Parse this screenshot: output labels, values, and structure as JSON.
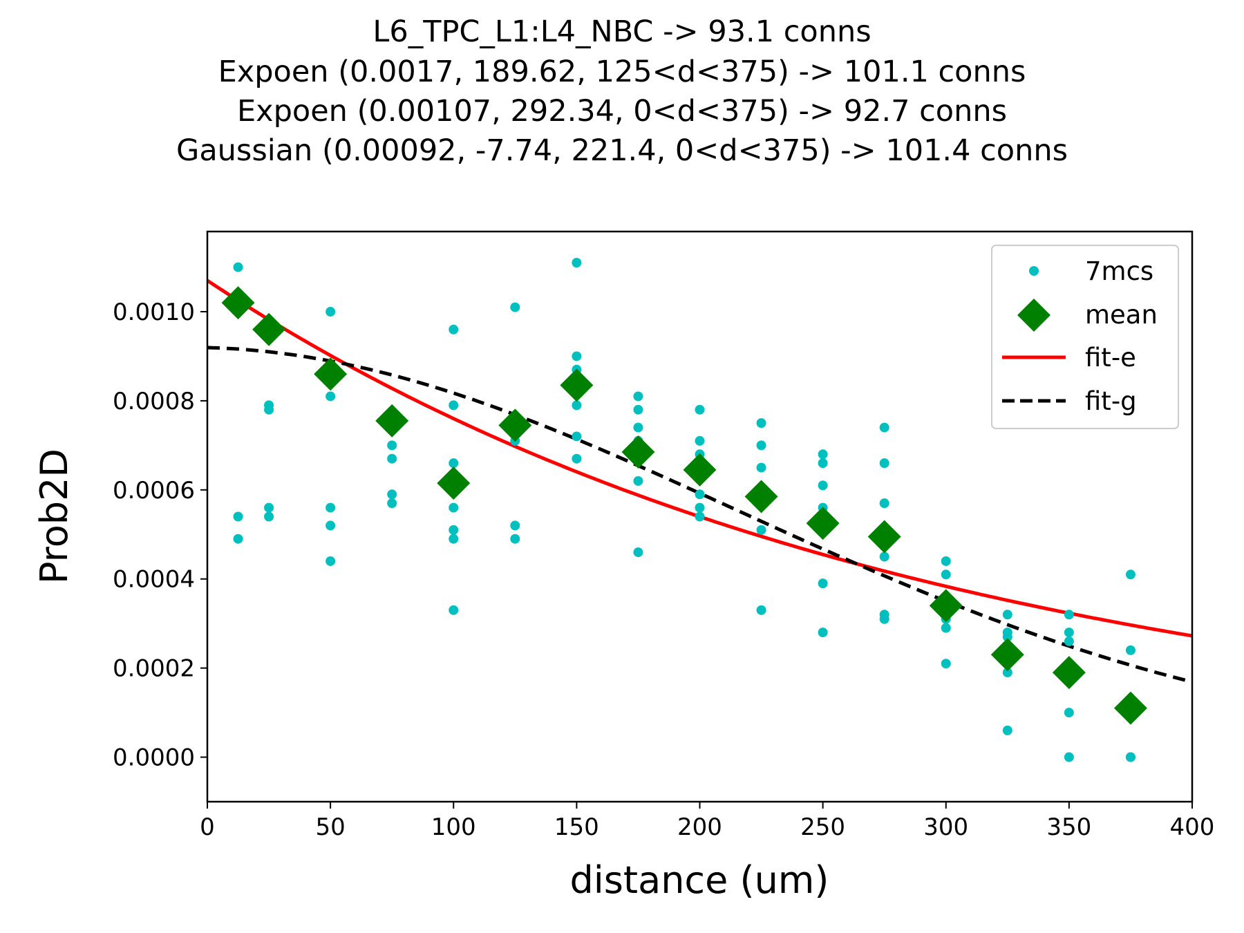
{
  "chart_data": {
    "type": "scatter",
    "title_lines": [
      "L6_TPC_L1:L4_NBC -> 93.1 conns",
      "Expoen (0.0017, 189.62, 125<d<375) -> 101.1 conns",
      "Expoen (0.00107, 292.34, 0<d<375) -> 92.7 conns",
      "Gaussian (0.00092, -7.74, 221.4, 0<d<375) -> 101.4 conns"
    ],
    "xlabel": "distance (um)",
    "ylabel": "Prob2D",
    "xlim": [
      0,
      400
    ],
    "ylim": [
      -0.0001,
      0.00118
    ],
    "x_ticks": [
      0,
      50,
      100,
      150,
      200,
      250,
      300,
      350,
      400
    ],
    "x_tick_labels": [
      "0",
      "50",
      "100",
      "150",
      "200",
      "250",
      "300",
      "350",
      "400"
    ],
    "y_ticks": [
      0,
      0.0002,
      0.0004,
      0.0006,
      0.0008,
      0.001
    ],
    "y_tick_labels": [
      "0.0000",
      "0.0002",
      "0.0004",
      "0.0006",
      "0.0008",
      "0.0010"
    ],
    "grid": false,
    "legend_position": "top-right",
    "legend": [
      "7mcs",
      "mean",
      "fit-e",
      "fit-g"
    ],
    "series": [
      {
        "name": "7mcs",
        "kind": "points",
        "color": "#00bfbf",
        "points": [
          [
            12.5,
            0.0011
          ],
          [
            12.5,
            0.00054
          ],
          [
            12.5,
            0.00049
          ],
          [
            25,
            0.00079
          ],
          [
            25,
            0.00078
          ],
          [
            25,
            0.00056
          ],
          [
            25,
            0.00054
          ],
          [
            50,
            0.001
          ],
          [
            50,
            0.00081
          ],
          [
            50,
            0.00056
          ],
          [
            50,
            0.00052
          ],
          [
            50,
            0.00044
          ],
          [
            75,
            0.0007
          ],
          [
            75,
            0.00067
          ],
          [
            75,
            0.00059
          ],
          [
            75,
            0.00057
          ],
          [
            100,
            0.00096
          ],
          [
            100,
            0.00079
          ],
          [
            100,
            0.00066
          ],
          [
            100,
            0.00056
          ],
          [
            100,
            0.00051
          ],
          [
            100,
            0.00049
          ],
          [
            100,
            0.00033
          ],
          [
            125,
            0.00101
          ],
          [
            125,
            0.00071
          ],
          [
            125,
            0.00052
          ],
          [
            125,
            0.00049
          ],
          [
            150,
            0.00111
          ],
          [
            150,
            0.0009
          ],
          [
            150,
            0.00087
          ],
          [
            150,
            0.00079
          ],
          [
            150,
            0.00072
          ],
          [
            150,
            0.00067
          ],
          [
            175,
            0.00081
          ],
          [
            175,
            0.00078
          ],
          [
            175,
            0.00074
          ],
          [
            175,
            0.00071
          ],
          [
            175,
            0.00062
          ],
          [
            175,
            0.00046
          ],
          [
            200,
            0.00078
          ],
          [
            200,
            0.00071
          ],
          [
            200,
            0.00068
          ],
          [
            200,
            0.00059
          ],
          [
            200,
            0.00056
          ],
          [
            200,
            0.00054
          ],
          [
            225,
            0.00075
          ],
          [
            225,
            0.0007
          ],
          [
            225,
            0.00065
          ],
          [
            225,
            0.00059
          ],
          [
            225,
            0.00051
          ],
          [
            225,
            0.00033
          ],
          [
            250,
            0.00068
          ],
          [
            250,
            0.00066
          ],
          [
            250,
            0.00061
          ],
          [
            250,
            0.00056
          ],
          [
            250,
            0.00039
          ],
          [
            250,
            0.00028
          ],
          [
            275,
            0.00074
          ],
          [
            275,
            0.00066
          ],
          [
            275,
            0.00057
          ],
          [
            275,
            0.00045
          ],
          [
            275,
            0.00032
          ],
          [
            275,
            0.00031
          ],
          [
            300,
            0.00044
          ],
          [
            300,
            0.00041
          ],
          [
            300,
            0.00031
          ],
          [
            300,
            0.00029
          ],
          [
            300,
            0.00021
          ],
          [
            325,
            0.00032
          ],
          [
            325,
            0.00028
          ],
          [
            325,
            0.00027
          ],
          [
            325,
            0.00019
          ],
          [
            325,
            6e-05
          ],
          [
            350,
            0.00032
          ],
          [
            350,
            0.00028
          ],
          [
            350,
            0.00026
          ],
          [
            350,
            0.0001
          ],
          [
            350,
            0
          ],
          [
            375,
            0.00041
          ],
          [
            375,
            0.00024
          ],
          [
            375,
            0
          ],
          [
            375,
            0
          ]
        ]
      },
      {
        "name": "mean",
        "kind": "diamonds",
        "color": "#008000",
        "points": [
          [
            12.5,
            0.00102
          ],
          [
            25,
            0.00096
          ],
          [
            50,
            0.00086
          ],
          [
            75,
            0.000755
          ],
          [
            100,
            0.000615
          ],
          [
            125,
            0.000745
          ],
          [
            150,
            0.000835
          ],
          [
            175,
            0.000685
          ],
          [
            200,
            0.000645
          ],
          [
            225,
            0.000585
          ],
          [
            250,
            0.000525
          ],
          [
            275,
            0.000495
          ],
          [
            300,
            0.00034
          ],
          [
            325,
            0.00023
          ],
          [
            350,
            0.00019
          ],
          [
            375,
            0.00011
          ]
        ]
      },
      {
        "name": "fit-e",
        "kind": "line",
        "color": "#ff0000",
        "model": "exponential",
        "params": [
          0.00107,
          292.34
        ]
      },
      {
        "name": "fit-g",
        "kind": "dashed-line",
        "color": "#000000",
        "model": "gaussian",
        "params": [
          0.00092,
          -7.74,
          221.4
        ]
      }
    ]
  }
}
